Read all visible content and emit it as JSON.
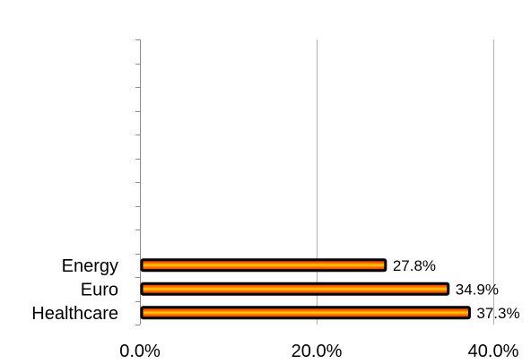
{
  "chart_data": {
    "type": "bar",
    "orientation": "horizontal",
    "title": "",
    "xlabel": "",
    "ylabel": "",
    "categories": [
      "Energy",
      "Euro",
      "Healthcare"
    ],
    "values": [
      27.8,
      34.9,
      37.3
    ],
    "data_labels": [
      "27.8%",
      "34.9%",
      "37.3%"
    ],
    "xlim": [
      0,
      40
    ],
    "x_ticks": [
      0,
      20,
      40
    ],
    "x_tick_labels": [
      "0.0%",
      "20.0%",
      "40.0%"
    ],
    "grid": "vertical major gridlines",
    "legend": "none",
    "colors": {
      "bar_outline": "#000000",
      "bar_gradient_outer": "#d42a00",
      "bar_gradient_mid": "#ff6a00",
      "bar_gradient_center": "#ffd200",
      "gridline": "#b0b0b0",
      "axis": "#8c8c8c"
    }
  }
}
